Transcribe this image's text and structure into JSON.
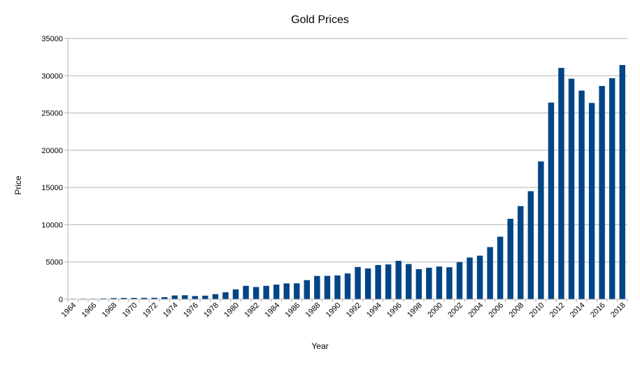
{
  "chart_data": {
    "type": "bar",
    "title": "Gold Prices",
    "xlabel": "Year",
    "ylabel": "Price",
    "ylim": [
      0,
      35000
    ],
    "yticks": [
      0,
      5000,
      10000,
      15000,
      20000,
      25000,
      30000,
      35000
    ],
    "grid": true,
    "legend": "none",
    "bar_color": "#004586",
    "categories": [
      "1964",
      "1965",
      "1966",
      "1967",
      "1968",
      "1969",
      "1970",
      "1971",
      "1972",
      "1973",
      "1974",
      "1975",
      "1976",
      "1977",
      "1978",
      "1979",
      "1980",
      "1981",
      "1982",
      "1983",
      "1984",
      "1985",
      "1986",
      "1987",
      "1988",
      "1989",
      "1990",
      "1991",
      "1992",
      "1993",
      "1994",
      "1995",
      "1996",
      "1997",
      "1998",
      "1999",
      "2000",
      "2001",
      "2002",
      "2003",
      "2004",
      "2005",
      "2006",
      "2007",
      "2008",
      "2009",
      "2010",
      "2011",
      "2012",
      "2013",
      "2014",
      "2015",
      "2016",
      "2017",
      "2018"
    ],
    "tick_labels": [
      "1964",
      "1966",
      "1968",
      "1970",
      "1972",
      "1974",
      "1976",
      "1978",
      "1980",
      "1982",
      "1984",
      "1986",
      "1988",
      "1990",
      "1992",
      "1994",
      "1996",
      "1998",
      "2000",
      "2002",
      "2004",
      "2006",
      "2008",
      "2010",
      "2012",
      "2014",
      "2016",
      "2018"
    ],
    "values": [
      63,
      72,
      72,
      103,
      162,
      176,
      184,
      193,
      202,
      279,
      506,
      540,
      432,
      486,
      685,
      937,
      1330,
      1800,
      1645,
      1800,
      1970,
      2130,
      2140,
      2570,
      3130,
      3140,
      3200,
      3466,
      4334,
      4140,
      4598,
      4680,
      5160,
      4725,
      4045,
      4234,
      4400,
      4300,
      4990,
      5600,
      5850,
      7000,
      8400,
      10800,
      12500,
      14500,
      18500,
      26400,
      31050,
      29600,
      28006,
      26343,
      28623,
      29667,
      31438
    ]
  }
}
